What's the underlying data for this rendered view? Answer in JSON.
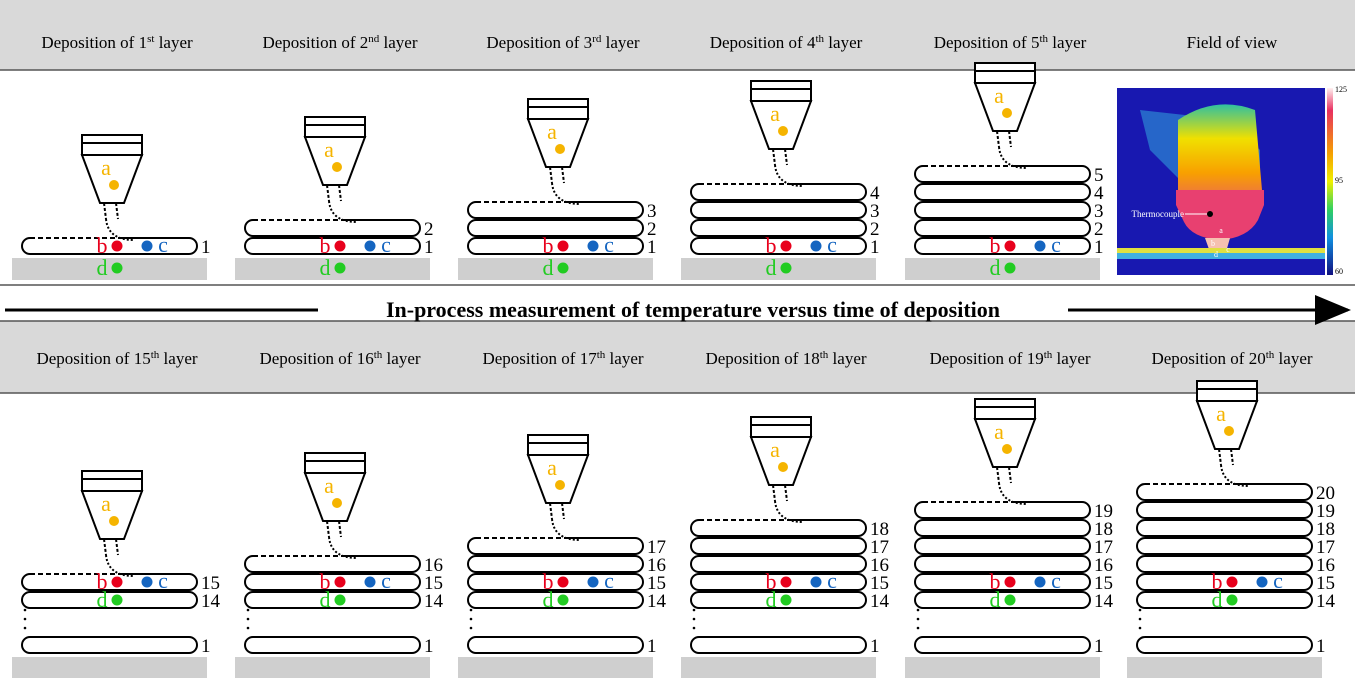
{
  "top_headers": [
    {
      "pre": "Deposition of 1",
      "sup": "st",
      "post": " layer"
    },
    {
      "pre": "Deposition of 2",
      "sup": "nd",
      "post": " layer"
    },
    {
      "pre": "Deposition of 3",
      "sup": "rd",
      "post": " layer"
    },
    {
      "pre": "Deposition of 4",
      "sup": "th",
      "post": " layer"
    },
    {
      "pre": "Deposition of 5",
      "sup": "th",
      "post": " layer"
    },
    {
      "pre": "Field of view"
    }
  ],
  "banner": "In-process measurement of temperature versus time of deposition",
  "bottom_headers": [
    {
      "pre": "Deposition of 15",
      "sup": "th",
      "post": " layer"
    },
    {
      "pre": "Deposition of 16",
      "sup": "th",
      "post": " layer"
    },
    {
      "pre": "Deposition of 17",
      "sup": "th",
      "post": " layer"
    },
    {
      "pre": "Deposition of 18",
      "sup": "th",
      "post": " layer"
    },
    {
      "pre": "Deposition of 19",
      "sup": "th",
      "post": " layer"
    },
    {
      "pre": "Deposition of 20",
      "sup": "th",
      "post": " layer"
    }
  ],
  "point_labels": {
    "a": "a",
    "b": "b",
    "c": "c",
    "d": "d"
  },
  "top_panels": [
    {
      "layers": [
        1
      ]
    },
    {
      "layers": [
        1,
        2
      ]
    },
    {
      "layers": [
        1,
        2,
        3
      ]
    },
    {
      "layers": [
        1,
        2,
        3,
        4
      ]
    },
    {
      "layers": [
        1,
        2,
        3,
        4,
        5
      ]
    }
  ],
  "bottom_panels": [
    {
      "layers": [
        1,
        14,
        15
      ]
    },
    {
      "layers": [
        1,
        14,
        15,
        16
      ]
    },
    {
      "layers": [
        1,
        14,
        15,
        16,
        17
      ]
    },
    {
      "layers": [
        1,
        14,
        15,
        16,
        17,
        18
      ]
    },
    {
      "layers": [
        1,
        14,
        15,
        16,
        17,
        18,
        19
      ]
    },
    {
      "layers": [
        1,
        14,
        15,
        16,
        17,
        18,
        19,
        20
      ]
    }
  ],
  "field_of_view": {
    "colorbar_ticks": [
      125,
      95,
      60
    ],
    "thermocouple_label": "Thermocouple"
  }
}
